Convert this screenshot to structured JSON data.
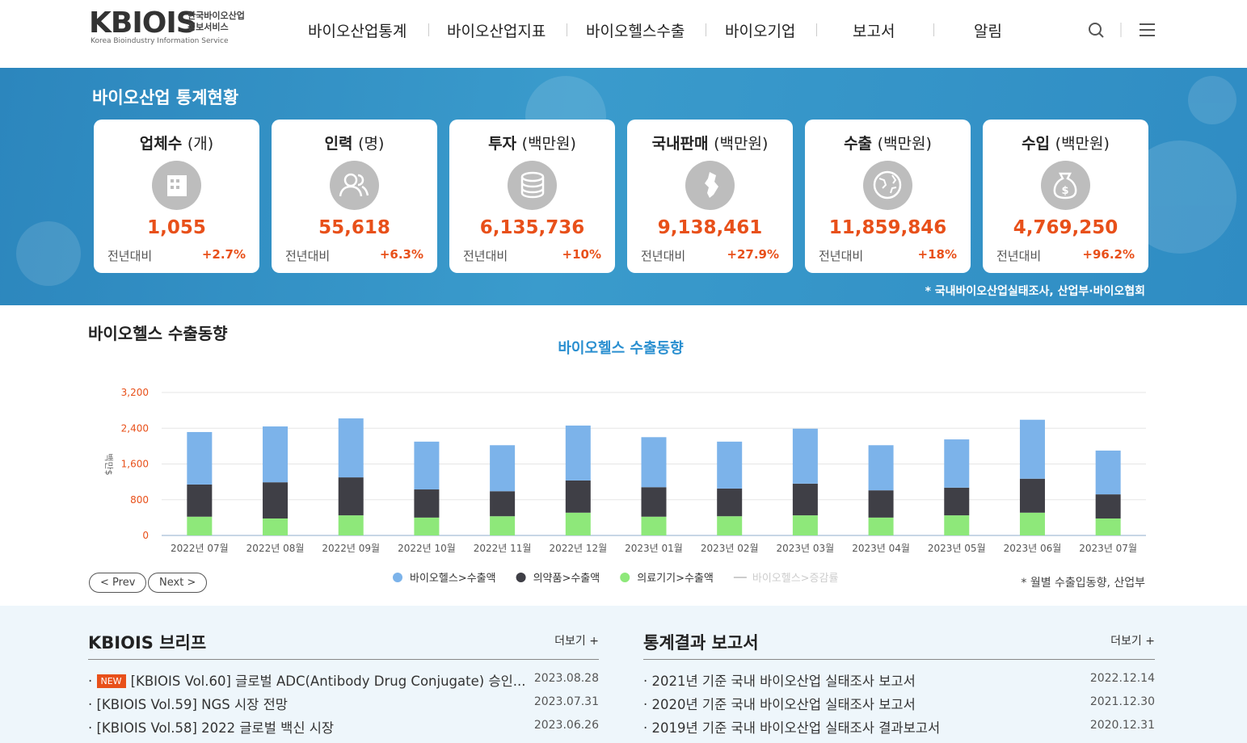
{
  "header": {
    "logo": "KBIOIS",
    "logo_sub1": "한국바이오산업",
    "logo_sub2": "정보서비스",
    "logo_en": "Korea Bioindustry Information Service",
    "nav": [
      "바이오산업통계",
      "바이오산업지표",
      "바이오헬스수출",
      "바이오기업",
      "보고서",
      "알림"
    ]
  },
  "stats": {
    "title": "바이오산업 통계현황",
    "compare_label": "전년대비",
    "source": "* 국내바이오산업실태조사, 산업부·바이오협회",
    "cards": [
      {
        "name": "업체수",
        "unit": "(개)",
        "value": "1,055",
        "change": "+2.7%"
      },
      {
        "name": "인력",
        "unit": "(명)",
        "value": "55,618",
        "change": "+6.3%"
      },
      {
        "name": "투자",
        "unit": "(백만원)",
        "value": "6,135,736",
        "change": "+10%"
      },
      {
        "name": "국내판매",
        "unit": "(백만원)",
        "value": "9,138,461",
        "change": "+27.9%"
      },
      {
        "name": "수출",
        "unit": "(백만원)",
        "value": "11,859,846",
        "change": "+18%"
      },
      {
        "name": "수입",
        "unit": "(백만원)",
        "value": "4,769,250",
        "change": "+96.2%"
      }
    ]
  },
  "export_section": {
    "heading": "바이오헬스 수출동향",
    "prev": "< Prev",
    "next": "Next >",
    "source": "* 월별 수출입동향, 산업부"
  },
  "chart_data": {
    "type": "stacked_bar",
    "title": "바이오헬스 수출동향",
    "y_label": "백만$",
    "categories": [
      "2022년 07월",
      "2022년 08월",
      "2022년 09월",
      "2022년 10월",
      "2022년 11월",
      "2022년 12월",
      "2023년 01월",
      "2023년 02월",
      "2023년 03월",
      "2023년 04월",
      "2023년 05월",
      "2023년 06월",
      "2023년 07월"
    ],
    "series": [
      {
        "name": "바이오헬스>수출액",
        "color": "#7cb3ea",
        "values": [
          1175,
          1250,
          1320,
          1070,
          1030,
          1230,
          1120,
          1050,
          1230,
          1010,
          1080,
          1320,
          980
        ]
      },
      {
        "name": "의약품>수출액",
        "color": "#3f3f46",
        "values": [
          720,
          810,
          850,
          630,
          560,
          720,
          660,
          620,
          710,
          610,
          620,
          760,
          540
        ]
      },
      {
        "name": "의료기기>수출액",
        "color": "#8ee87a",
        "values": [
          420,
          380,
          450,
          400,
          430,
          510,
          420,
          430,
          450,
          400,
          450,
          510,
          380
        ]
      }
    ],
    "hidden_series": [
      "바이오헬스>증감률"
    ],
    "ylim": [
      0,
      3200
    ],
    "yticks": [
      0,
      800,
      {
        "value": 1600,
        "label": "1,600"
      },
      {
        "value": 2400,
        "label": "2,400"
      },
      {
        "value": 3200,
        "label": "3,200"
      }
    ],
    "grid": true
  },
  "brief": {
    "title": "KBIOIS 브리프",
    "more": "더보기 +",
    "items": [
      {
        "badge": "NEW",
        "text": "[KBIOIS Vol.60] 글로벌 ADC(Antibody Drug Conjugate) 승인...",
        "date": "2023.08.28"
      },
      {
        "text": "[KBIOIS Vol.59] NGS 시장 전망",
        "date": "2023.07.31"
      },
      {
        "text": "[KBIOIS Vol.58] 2022 글로벌 백신 시장",
        "date": "2023.06.26"
      }
    ]
  },
  "reports": {
    "title": "통계결과 보고서",
    "more": "더보기 +",
    "items": [
      {
        "text": "2021년 기준 국내 바이오산업 실태조사 보고서",
        "date": "2022.12.14"
      },
      {
        "text": "2020년 기준 국내 바이오산업 실태조사 보고서",
        "date": "2021.12.30"
      },
      {
        "text": "2019년 기준 국내 바이오산업 실태조사 결과보고서",
        "date": "2020.12.31"
      }
    ]
  }
}
